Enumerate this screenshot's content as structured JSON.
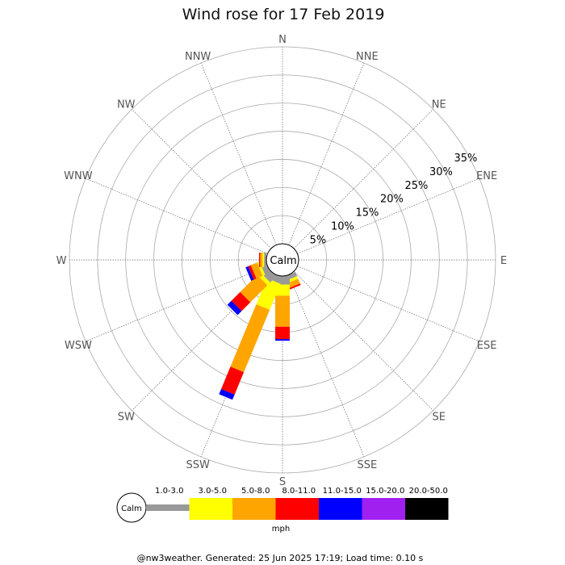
{
  "chart_data": {
    "type": "wind-rose",
    "title": "Wind rose for 17 Feb 2019",
    "calm_label": "Calm",
    "directions": [
      "N",
      "NNE",
      "NE",
      "ENE",
      "E",
      "ESE",
      "SE",
      "SSE",
      "S",
      "SSW",
      "SW",
      "WSW",
      "W",
      "WNW",
      "NW",
      "NNW"
    ],
    "radial_ticks": [
      "5%",
      "10%",
      "15%",
      "20%",
      "25%",
      "30%",
      "35%"
    ],
    "radial_max_percent": 35,
    "speed_bins": [
      {
        "label": "1.0-3.0",
        "color": "#999999"
      },
      {
        "label": "3.0-5.0",
        "color": "#ffff00"
      },
      {
        "label": "5.0-8.0",
        "color": "#ffa500"
      },
      {
        "label": "8.0-11.0",
        "color": "#ff0000"
      },
      {
        "label": "11.0-15.0",
        "color": "#0000ff"
      },
      {
        "label": "15.0-20.0",
        "color": "#a020f0"
      },
      {
        "label": "20.0-50.0",
        "color": "#000000"
      }
    ],
    "units": "mph",
    "series_percent_by_direction": {
      "N": [
        0,
        0,
        0,
        0,
        0,
        0,
        0
      ],
      "NNE": [
        0,
        0,
        0,
        0,
        0,
        0,
        0
      ],
      "NE": [
        0,
        0,
        0,
        0,
        0,
        0,
        0
      ],
      "ENE": [
        0,
        0,
        0,
        0,
        0,
        0,
        0
      ],
      "E": [
        0,
        0,
        0,
        0,
        0,
        0,
        0
      ],
      "ESE": [
        0,
        0,
        0,
        0,
        0,
        0,
        0
      ],
      "SE": [
        0,
        0,
        0,
        0,
        0,
        0,
        0
      ],
      "SSE": [
        0.8,
        0.5,
        0.9,
        0.3,
        0,
        0,
        0
      ],
      "S": [
        1.5,
        2.0,
        5.5,
        2.2,
        0.3,
        0,
        0
      ],
      "SSW": [
        1.2,
        5.0,
        12.0,
        4.3,
        1.0,
        0,
        0
      ],
      "SW": [
        1.5,
        0.7,
        4.3,
        2.2,
        1.0,
        0,
        0
      ],
      "WSW": [
        1.0,
        0.5,
        1.2,
        0.5,
        0.5,
        0,
        0
      ],
      "W": [
        0.4,
        0.3,
        0.4,
        0.2,
        0,
        0,
        0
      ],
      "WNW": [
        0,
        0,
        0,
        0,
        0,
        0,
        0
      ],
      "NW": [
        0,
        0,
        0,
        0,
        0,
        0,
        0
      ],
      "NNW": [
        0,
        0,
        0,
        0,
        0,
        0,
        0
      ]
    },
    "grid": true
  },
  "footer": "@nw3weather. Generated: 25 Jun 2025 17:19; Load time: 0.10 s"
}
